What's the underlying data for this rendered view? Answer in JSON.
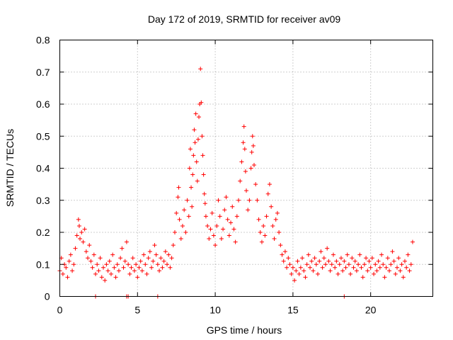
{
  "chart_data": {
    "type": "scatter",
    "title": "Day 172 of 2019, SRMTID for receiver av09",
    "xlabel": "GPS time / hours",
    "ylabel": "SRMTID / TECUs",
    "xlim": [
      0,
      24
    ],
    "ylim": [
      0,
      0.8
    ],
    "xticks": [
      0,
      5,
      10,
      15,
      20
    ],
    "xtick_labels": [
      "0",
      "5",
      "10",
      "15",
      "20"
    ],
    "yticks": [
      0,
      0.1,
      0.2,
      0.3,
      0.4,
      0.5,
      0.6,
      0.7,
      0.8
    ],
    "ytick_labels": [
      "0",
      "0.1",
      "0.2",
      "0.3",
      "0.4",
      "0.5",
      "0.6",
      "0.7",
      "0.8"
    ],
    "grid": true,
    "marker": "plus",
    "color": "#ff0000",
    "series": [
      {
        "name": "SRMTID",
        "points": [
          [
            0.0,
            0.08
          ],
          [
            0.1,
            0.12
          ],
          [
            0.2,
            0.07
          ],
          [
            0.3,
            0.1
          ],
          [
            0.4,
            0.09
          ],
          [
            0.5,
            0.06
          ],
          [
            0.6,
            0.11
          ],
          [
            0.7,
            0.13
          ],
          [
            0.8,
            0.08
          ],
          [
            0.9,
            0.1
          ],
          [
            1.0,
            0.15
          ],
          [
            1.1,
            0.19
          ],
          [
            1.2,
            0.24
          ],
          [
            1.25,
            0.22
          ],
          [
            1.3,
            0.18
          ],
          [
            1.4,
            0.2
          ],
          [
            1.5,
            0.17
          ],
          [
            1.6,
            0.21
          ],
          [
            1.7,
            0.14
          ],
          [
            1.8,
            0.12
          ],
          [
            1.9,
            0.16
          ],
          [
            2.0,
            0.11
          ],
          [
            2.1,
            0.09
          ],
          [
            2.2,
            0.13
          ],
          [
            2.3,
            0.07
          ],
          [
            2.4,
            0.1
          ],
          [
            2.5,
            0.08
          ],
          [
            2.6,
            0.12
          ],
          [
            2.7,
            0.06
          ],
          [
            2.8,
            0.09
          ],
          [
            2.9,
            0.05
          ],
          [
            3.0,
            0.1
          ],
          [
            3.1,
            0.08
          ],
          [
            3.2,
            0.11
          ],
          [
            3.3,
            0.07
          ],
          [
            3.4,
            0.13
          ],
          [
            3.5,
            0.09
          ],
          [
            3.6,
            0.06
          ],
          [
            3.7,
            0.1
          ],
          [
            3.8,
            0.08
          ],
          [
            3.9,
            0.12
          ],
          [
            4.0,
            0.15
          ],
          [
            4.1,
            0.09
          ],
          [
            4.2,
            0.11
          ],
          [
            4.3,
            0.17
          ],
          [
            4.4,
            0.1
          ],
          [
            4.5,
            0.07
          ],
          [
            4.6,
            0.09
          ],
          [
            4.7,
            0.12
          ],
          [
            4.8,
            0.08
          ],
          [
            4.9,
            0.1
          ],
          [
            5.0,
            0.06
          ],
          [
            5.1,
            0.09
          ],
          [
            5.2,
            0.11
          ],
          [
            5.3,
            0.08
          ],
          [
            5.4,
            0.13
          ],
          [
            5.5,
            0.1
          ],
          [
            5.6,
            0.07
          ],
          [
            5.7,
            0.12
          ],
          [
            5.8,
            0.14
          ],
          [
            5.9,
            0.09
          ],
          [
            6.0,
            0.11
          ],
          [
            6.1,
            0.16
          ],
          [
            6.2,
            0.13
          ],
          [
            6.3,
            0.1
          ],
          [
            6.4,
            0.08
          ],
          [
            6.5,
            0.12
          ],
          [
            6.6,
            0.09
          ],
          [
            6.7,
            0.11
          ],
          [
            6.8,
            0.14
          ],
          [
            6.9,
            0.1
          ],
          [
            7.0,
            0.13
          ],
          [
            7.1,
            0.09
          ],
          [
            7.2,
            0.12
          ],
          [
            7.3,
            0.16
          ],
          [
            7.4,
            0.2
          ],
          [
            7.5,
            0.26
          ],
          [
            7.6,
            0.31
          ],
          [
            7.65,
            0.34
          ],
          [
            7.7,
            0.24
          ],
          [
            7.8,
            0.18
          ],
          [
            7.9,
            0.22
          ],
          [
            8.0,
            0.27
          ],
          [
            8.1,
            0.2
          ],
          [
            8.2,
            0.3
          ],
          [
            8.3,
            0.25
          ],
          [
            8.35,
            0.4
          ],
          [
            8.4,
            0.46
          ],
          [
            8.45,
            0.34
          ],
          [
            8.5,
            0.28
          ],
          [
            8.55,
            0.38
          ],
          [
            8.6,
            0.44
          ],
          [
            8.65,
            0.52
          ],
          [
            8.7,
            0.48
          ],
          [
            8.75,
            0.57
          ],
          [
            8.8,
            0.42
          ],
          [
            8.85,
            0.36
          ],
          [
            8.9,
            0.49
          ],
          [
            8.95,
            0.56
          ],
          [
            9.0,
            0.6
          ],
          [
            9.05,
            0.71
          ],
          [
            9.1,
            0.605
          ],
          [
            9.15,
            0.5
          ],
          [
            9.2,
            0.44
          ],
          [
            9.25,
            0.38
          ],
          [
            9.3,
            0.32
          ],
          [
            9.35,
            0.29
          ],
          [
            9.4,
            0.25
          ],
          [
            9.5,
            0.22
          ],
          [
            9.6,
            0.18
          ],
          [
            9.7,
            0.21
          ],
          [
            9.8,
            0.26
          ],
          [
            9.9,
            0.19
          ],
          [
            10.0,
            0.16
          ],
          [
            10.1,
            0.22
          ],
          [
            10.2,
            0.3
          ],
          [
            10.3,
            0.25
          ],
          [
            10.4,
            0.18
          ],
          [
            10.5,
            0.21
          ],
          [
            10.6,
            0.27
          ],
          [
            10.7,
            0.31
          ],
          [
            10.8,
            0.24
          ],
          [
            10.9,
            0.19
          ],
          [
            11.0,
            0.23
          ],
          [
            11.1,
            0.28
          ],
          [
            11.2,
            0.21
          ],
          [
            11.3,
            0.17
          ],
          [
            11.4,
            0.25
          ],
          [
            11.5,
            0.3
          ],
          [
            11.6,
            0.36
          ],
          [
            11.7,
            0.42
          ],
          [
            11.8,
            0.48
          ],
          [
            11.85,
            0.53
          ],
          [
            11.9,
            0.46
          ],
          [
            11.95,
            0.39
          ],
          [
            12.0,
            0.33
          ],
          [
            12.1,
            0.27
          ],
          [
            12.2,
            0.3
          ],
          [
            12.3,
            0.4
          ],
          [
            12.35,
            0.45
          ],
          [
            12.4,
            0.5
          ],
          [
            12.45,
            0.47
          ],
          [
            12.5,
            0.41
          ],
          [
            12.6,
            0.35
          ],
          [
            12.7,
            0.3
          ],
          [
            12.8,
            0.24
          ],
          [
            12.9,
            0.2
          ],
          [
            13.0,
            0.17
          ],
          [
            13.1,
            0.22
          ],
          [
            13.2,
            0.19
          ],
          [
            13.3,
            0.25
          ],
          [
            13.4,
            0.32
          ],
          [
            13.5,
            0.35
          ],
          [
            13.6,
            0.28
          ],
          [
            13.7,
            0.22
          ],
          [
            13.8,
            0.18
          ],
          [
            13.9,
            0.24
          ],
          [
            14.0,
            0.26
          ],
          [
            14.1,
            0.2
          ],
          [
            14.2,
            0.16
          ],
          [
            14.3,
            0.13
          ],
          [
            14.4,
            0.11
          ],
          [
            14.5,
            0.14
          ],
          [
            14.6,
            0.09
          ],
          [
            14.7,
            0.12
          ],
          [
            14.8,
            0.1
          ],
          [
            14.9,
            0.07
          ],
          [
            15.0,
            0.09
          ],
          [
            15.1,
            0.05
          ],
          [
            15.2,
            0.08
          ],
          [
            15.3,
            0.11
          ],
          [
            15.4,
            0.07
          ],
          [
            15.5,
            0.09
          ],
          [
            15.6,
            0.12
          ],
          [
            15.7,
            0.08
          ],
          [
            15.8,
            0.06
          ],
          [
            15.9,
            0.1
          ],
          [
            16.0,
            0.13
          ],
          [
            16.1,
            0.09
          ],
          [
            16.2,
            0.11
          ],
          [
            16.3,
            0.08
          ],
          [
            16.4,
            0.12
          ],
          [
            16.5,
            0.1
          ],
          [
            16.6,
            0.07
          ],
          [
            16.7,
            0.11
          ],
          [
            16.8,
            0.14
          ],
          [
            16.9,
            0.09
          ],
          [
            17.0,
            0.12
          ],
          [
            17.1,
            0.1
          ],
          [
            17.2,
            0.15
          ],
          [
            17.3,
            0.11
          ],
          [
            17.4,
            0.08
          ],
          [
            17.5,
            0.1
          ],
          [
            17.6,
            0.13
          ],
          [
            17.7,
            0.09
          ],
          [
            17.8,
            0.11
          ],
          [
            17.9,
            0.07
          ],
          [
            18.0,
            0.1
          ],
          [
            18.1,
            0.12
          ],
          [
            18.2,
            0.08
          ],
          [
            18.3,
            0.11
          ],
          [
            18.4,
            0.09
          ],
          [
            18.5,
            0.13
          ],
          [
            18.6,
            0.1
          ],
          [
            18.7,
            0.07
          ],
          [
            18.8,
            0.12
          ],
          [
            18.9,
            0.09
          ],
          [
            19.0,
            0.11
          ],
          [
            19.1,
            0.08
          ],
          [
            19.2,
            0.1
          ],
          [
            19.3,
            0.13
          ],
          [
            19.4,
            0.09
          ],
          [
            19.5,
            0.06
          ],
          [
            19.6,
            0.1
          ],
          [
            19.7,
            0.12
          ],
          [
            19.8,
            0.08
          ],
          [
            19.9,
            0.11
          ],
          [
            20.0,
            0.09
          ],
          [
            20.1,
            0.12
          ],
          [
            20.2,
            0.07
          ],
          [
            20.3,
            0.1
          ],
          [
            20.4,
            0.08
          ],
          [
            20.5,
            0.11
          ],
          [
            20.6,
            0.09
          ],
          [
            20.7,
            0.13
          ],
          [
            20.8,
            0.1
          ],
          [
            20.9,
            0.06
          ],
          [
            21.0,
            0.09
          ],
          [
            21.1,
            0.12
          ],
          [
            21.2,
            0.08
          ],
          [
            21.3,
            0.1
          ],
          [
            21.4,
            0.14
          ],
          [
            21.5,
            0.11
          ],
          [
            21.6,
            0.07
          ],
          [
            21.7,
            0.09
          ],
          [
            21.8,
            0.12
          ],
          [
            21.9,
            0.08
          ],
          [
            22.0,
            0.1
          ],
          [
            22.1,
            0.06
          ],
          [
            22.2,
            0.11
          ],
          [
            22.3,
            0.09
          ],
          [
            22.4,
            0.13
          ],
          [
            22.5,
            0.08
          ],
          [
            22.6,
            0.1
          ],
          [
            22.7,
            0.17
          ]
        ]
      }
    ],
    "zero_points": [
      2.3,
      4.3,
      4.4,
      6.3,
      18.3
    ]
  }
}
